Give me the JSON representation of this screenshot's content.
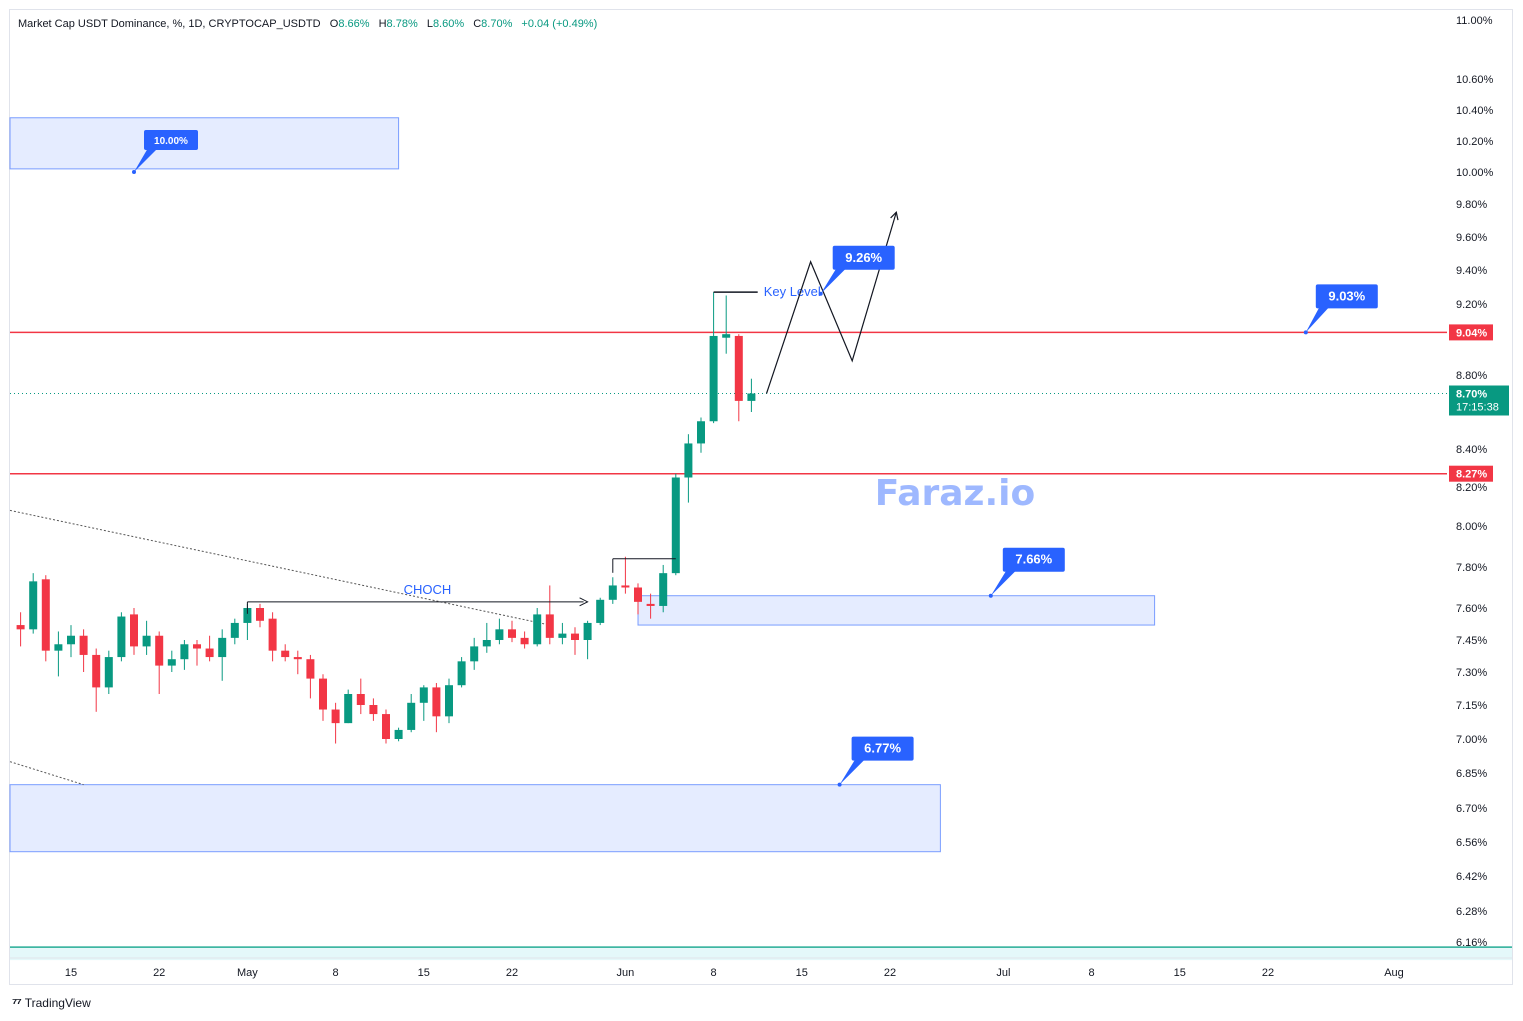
{
  "legend": {
    "symbol": "Market Cap USDT Dominance, %, 1D, CRYPTOCAP_USDTD",
    "open_label": "O",
    "open": "8.66%",
    "high_label": "H",
    "high": "8.78%",
    "low_label": "L",
    "low": "8.60%",
    "close_label": "C",
    "close": "8.70%",
    "change": "+0.04 (+0.49%)"
  },
  "watermark": "Faraz.io",
  "footer": {
    "brand": "TradingView"
  },
  "colors": {
    "up": "#089981",
    "down": "#f23645",
    "zone": "#2962ff",
    "level": "#f23645",
    "label": "#2962ff"
  },
  "chart_data": {
    "type": "candlestick",
    "y_ticks": [
      {
        "v": 11.0,
        "t": "11.00%"
      },
      {
        "v": 10.6,
        "t": "10.60%"
      },
      {
        "v": 10.4,
        "t": "10.40%"
      },
      {
        "v": 10.2,
        "t": "10.20%"
      },
      {
        "v": 10.0,
        "t": "10.00%"
      },
      {
        "v": 9.8,
        "t": "9.80%"
      },
      {
        "v": 9.6,
        "t": "9.60%"
      },
      {
        "v": 9.4,
        "t": "9.40%"
      },
      {
        "v": 9.2,
        "t": "9.20%"
      },
      {
        "v": 8.8,
        "t": "8.80%"
      },
      {
        "v": 8.4,
        "t": "8.40%"
      },
      {
        "v": 8.2,
        "t": "8.20%"
      },
      {
        "v": 8.0,
        "t": "8.00%"
      },
      {
        "v": 7.8,
        "t": "7.80%"
      },
      {
        "v": 7.6,
        "t": "7.60%"
      },
      {
        "v": 7.45,
        "t": "7.45%"
      },
      {
        "v": 7.3,
        "t": "7.30%"
      },
      {
        "v": 7.15,
        "t": "7.15%"
      },
      {
        "v": 7.0,
        "t": "7.00%"
      },
      {
        "v": 6.85,
        "t": "6.85%"
      },
      {
        "v": 6.7,
        "t": "6.70%"
      },
      {
        "v": 6.56,
        "t": "6.56%"
      },
      {
        "v": 6.42,
        "t": "6.42%"
      },
      {
        "v": 6.28,
        "t": "6.28%"
      },
      {
        "v": 6.16,
        "t": "6.16%"
      }
    ],
    "x_ticks": [
      {
        "d": 15,
        "t": "15"
      },
      {
        "d": 22,
        "t": "22"
      },
      {
        "d": 29,
        "t": "May"
      },
      {
        "d": 36,
        "t": "8"
      },
      {
        "d": 43,
        "t": "15"
      },
      {
        "d": 50,
        "t": "22"
      },
      {
        "d": 59,
        "t": "Jun"
      },
      {
        "d": 66,
        "t": "8"
      },
      {
        "d": 73,
        "t": "15"
      },
      {
        "d": 80,
        "t": "22"
      },
      {
        "d": 89,
        "t": "Jul"
      },
      {
        "d": 96,
        "t": "8"
      },
      {
        "d": 103,
        "t": "15"
      },
      {
        "d": 110,
        "t": "22"
      },
      {
        "d": 120,
        "t": "Aug"
      }
    ],
    "candles": [
      {
        "d": 10,
        "o": 7.62,
        "h": 7.63,
        "l": 7.47,
        "c": 7.52
      },
      {
        "d": 11,
        "o": 7.52,
        "h": 7.58,
        "l": 7.42,
        "c": 7.5
      },
      {
        "d": 12,
        "o": 7.5,
        "h": 7.77,
        "l": 7.48,
        "c": 7.73
      },
      {
        "d": 13,
        "o": 7.74,
        "h": 7.76,
        "l": 7.35,
        "c": 7.4
      },
      {
        "d": 14,
        "o": 7.4,
        "h": 7.49,
        "l": 7.28,
        "c": 7.43
      },
      {
        "d": 15,
        "o": 7.43,
        "h": 7.52,
        "l": 7.37,
        "c": 7.47
      },
      {
        "d": 16,
        "o": 7.47,
        "h": 7.5,
        "l": 7.3,
        "c": 7.38
      },
      {
        "d": 17,
        "o": 7.38,
        "h": 7.41,
        "l": 7.12,
        "c": 7.23
      },
      {
        "d": 18,
        "o": 7.23,
        "h": 7.4,
        "l": 7.2,
        "c": 7.37
      },
      {
        "d": 19,
        "o": 7.37,
        "h": 7.58,
        "l": 7.35,
        "c": 7.56
      },
      {
        "d": 20,
        "o": 7.57,
        "h": 7.6,
        "l": 7.38,
        "c": 7.42
      },
      {
        "d": 21,
        "o": 7.42,
        "h": 7.54,
        "l": 7.38,
        "c": 7.47
      },
      {
        "d": 22,
        "o": 7.47,
        "h": 7.49,
        "l": 7.2,
        "c": 7.33
      },
      {
        "d": 23,
        "o": 7.33,
        "h": 7.4,
        "l": 7.3,
        "c": 7.36
      },
      {
        "d": 24,
        "o": 7.36,
        "h": 7.45,
        "l": 7.31,
        "c": 7.43
      },
      {
        "d": 25,
        "o": 7.43,
        "h": 7.45,
        "l": 7.33,
        "c": 7.41
      },
      {
        "d": 26,
        "o": 7.41,
        "h": 7.47,
        "l": 7.35,
        "c": 7.37
      },
      {
        "d": 27,
        "o": 7.37,
        "h": 7.5,
        "l": 7.26,
        "c": 7.46
      },
      {
        "d": 28,
        "o": 7.46,
        "h": 7.55,
        "l": 7.43,
        "c": 7.53
      },
      {
        "d": 29,
        "o": 7.53,
        "h": 7.62,
        "l": 7.45,
        "c": 7.6
      },
      {
        "d": 30,
        "o": 7.6,
        "h": 7.62,
        "l": 7.51,
        "c": 7.54
      },
      {
        "d": 31,
        "o": 7.55,
        "h": 7.58,
        "l": 7.35,
        "c": 7.4
      },
      {
        "d": 32,
        "o": 7.4,
        "h": 7.43,
        "l": 7.35,
        "c": 7.37
      },
      {
        "d": 33,
        "o": 7.37,
        "h": 7.4,
        "l": 7.29,
        "c": 7.36
      },
      {
        "d": 34,
        "o": 7.36,
        "h": 7.38,
        "l": 7.18,
        "c": 7.27
      },
      {
        "d": 35,
        "o": 7.27,
        "h": 7.29,
        "l": 7.08,
        "c": 7.13
      },
      {
        "d": 36,
        "o": 7.13,
        "h": 7.16,
        "l": 6.98,
        "c": 7.07
      },
      {
        "d": 37,
        "o": 7.07,
        "h": 7.22,
        "l": 7.07,
        "c": 7.2
      },
      {
        "d": 38,
        "o": 7.2,
        "h": 7.27,
        "l": 7.11,
        "c": 7.15
      },
      {
        "d": 39,
        "o": 7.15,
        "h": 7.18,
        "l": 7.08,
        "c": 7.11
      },
      {
        "d": 40,
        "o": 7.11,
        "h": 7.13,
        "l": 6.98,
        "c": 7.0
      },
      {
        "d": 41,
        "o": 7.0,
        "h": 7.05,
        "l": 6.99,
        "c": 7.04
      },
      {
        "d": 42,
        "o": 7.04,
        "h": 7.2,
        "l": 7.03,
        "c": 7.16
      },
      {
        "d": 43,
        "o": 7.16,
        "h": 7.24,
        "l": 7.08,
        "c": 7.23
      },
      {
        "d": 44,
        "o": 7.23,
        "h": 7.25,
        "l": 7.03,
        "c": 7.1
      },
      {
        "d": 45,
        "o": 7.1,
        "h": 7.27,
        "l": 7.07,
        "c": 7.24
      },
      {
        "d": 46,
        "o": 7.24,
        "h": 7.37,
        "l": 7.23,
        "c": 7.35
      },
      {
        "d": 47,
        "o": 7.35,
        "h": 7.46,
        "l": 7.31,
        "c": 7.42
      },
      {
        "d": 48,
        "o": 7.42,
        "h": 7.53,
        "l": 7.39,
        "c": 7.45
      },
      {
        "d": 49,
        "o": 7.45,
        "h": 7.55,
        "l": 7.43,
        "c": 7.5
      },
      {
        "d": 50,
        "o": 7.5,
        "h": 7.54,
        "l": 7.44,
        "c": 7.46
      },
      {
        "d": 51,
        "o": 7.46,
        "h": 7.49,
        "l": 7.41,
        "c": 7.43
      },
      {
        "d": 52,
        "o": 7.43,
        "h": 7.6,
        "l": 7.42,
        "c": 7.57
      },
      {
        "d": 53,
        "o": 7.57,
        "h": 7.71,
        "l": 7.43,
        "c": 7.46
      },
      {
        "d": 54,
        "o": 7.46,
        "h": 7.53,
        "l": 7.43,
        "c": 7.48
      },
      {
        "d": 55,
        "o": 7.48,
        "h": 7.51,
        "l": 7.38,
        "c": 7.45
      },
      {
        "d": 56,
        "o": 7.45,
        "h": 7.54,
        "l": 7.36,
        "c": 7.53
      },
      {
        "d": 57,
        "o": 7.53,
        "h": 7.65,
        "l": 7.52,
        "c": 7.64
      },
      {
        "d": 58,
        "o": 7.64,
        "h": 7.75,
        "l": 7.62,
        "c": 7.71
      },
      {
        "d": 59,
        "o": 7.71,
        "h": 7.85,
        "l": 7.67,
        "c": 7.7
      },
      {
        "d": 60,
        "o": 7.7,
        "h": 7.72,
        "l": 7.57,
        "c": 7.63
      },
      {
        "d": 61,
        "o": 7.62,
        "h": 7.67,
        "l": 7.55,
        "c": 7.61
      },
      {
        "d": 62,
        "o": 7.61,
        "h": 7.81,
        "l": 7.58,
        "c": 7.77
      },
      {
        "d": 63,
        "o": 7.77,
        "h": 8.27,
        "l": 7.76,
        "c": 8.25
      },
      {
        "d": 64,
        "o": 8.25,
        "h": 8.48,
        "l": 8.12,
        "c": 8.43
      },
      {
        "d": 65,
        "o": 8.43,
        "h": 8.57,
        "l": 8.38,
        "c": 8.55
      },
      {
        "d": 66,
        "o": 8.55,
        "h": 9.27,
        "l": 8.54,
        "c": 9.02
      },
      {
        "d": 67,
        "o": 9.01,
        "h": 9.25,
        "l": 8.92,
        "c": 9.03
      },
      {
        "d": 68,
        "o": 9.02,
        "h": 9.03,
        "l": 8.55,
        "c": 8.66
      },
      {
        "d": 69,
        "o": 8.66,
        "h": 8.78,
        "l": 8.6,
        "c": 8.7
      }
    ],
    "zones": [
      {
        "d0": 8,
        "d1": 41,
        "hi": 10.35,
        "lo": 10.02
      },
      {
        "d0": 60,
        "d1": 101,
        "hi": 7.66,
        "lo": 7.52
      },
      {
        "d0": 8,
        "d1": 84,
        "hi": 6.8,
        "lo": 6.52
      }
    ],
    "levels": [
      {
        "v": 9.04,
        "label": "9.04%"
      },
      {
        "v": 8.27,
        "label": "8.27%"
      }
    ],
    "last_price": {
      "v": 8.7,
      "label": "8.70%",
      "timer": "17:15:38"
    },
    "callouts": [
      {
        "d": 20,
        "v": 10.0,
        "dx": 10,
        "dy": -22,
        "label": "10.00%",
        "small": true
      },
      {
        "d": 74.5,
        "v": 9.26,
        "dx": 12,
        "dy": -24,
        "label": "9.26%"
      },
      {
        "d": 113,
        "v": 9.04,
        "dx": 10,
        "dy": -24,
        "label": "9.03%"
      },
      {
        "d": 88,
        "v": 7.66,
        "dx": 12,
        "dy": -24,
        "label": "7.66%"
      },
      {
        "d": 76,
        "v": 6.8,
        "dx": 12,
        "dy": -24,
        "label": "6.77%"
      }
    ],
    "annotations": {
      "choch": {
        "d0": 29,
        "d1": 56,
        "v": 7.63,
        "label": "CHOCH"
      },
      "key_level": {
        "d0": 66,
        "d1": 69.5,
        "v": 9.27,
        "label": "Key Level"
      },
      "breakout": {
        "d0": 58,
        "d1": 63,
        "v": 7.84
      },
      "projection": [
        {
          "d": 70.2,
          "v": 8.7
        },
        {
          "d": 73.7,
          "v": 9.45
        },
        {
          "d": 77,
          "v": 8.88
        },
        {
          "d": 80.5,
          "v": 9.75
        }
      ],
      "trendline_upper": [
        {
          "d": 8.5,
          "v": 8.08
        },
        {
          "d": 53,
          "v": 7.52
        }
      ],
      "trendline_lower": [
        {
          "d": 8.5,
          "v": 6.9
        },
        {
          "d": 16,
          "v": 6.8
        }
      ]
    },
    "bottom_line": 6.14
  }
}
